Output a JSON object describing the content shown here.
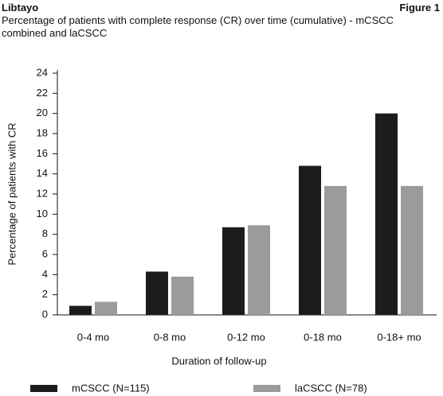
{
  "chart_data": {
    "type": "bar",
    "title": "Libtayo",
    "figure_label": "Figure 1",
    "subtitle": "Percentage of patients with complete response (CR) over time (cumulative) - mCSCC combined and laCSCC",
    "x_label": "Duration of follow-up",
    "y_label": "Percentage of patients with CR",
    "categories": [
      "0-4 mo",
      "0-8 mo",
      "0-12 mo",
      "0-18 mo",
      "0-18+ mo"
    ],
    "series": [
      {
        "name": "mCSCC (N=115)",
        "color": "#1c1c1c",
        "values": [
          0.9,
          4.3,
          8.7,
          14.8,
          20.0
        ]
      },
      {
        "name": "laCSCC (N=78)",
        "color": "#9b9b9b",
        "values": [
          1.3,
          3.8,
          8.9,
          12.8,
          12.8
        ]
      }
    ],
    "ylim": [
      0,
      24
    ],
    "yticks": [
      0,
      2,
      4,
      6,
      8,
      10,
      12,
      14,
      16,
      18,
      20,
      22,
      24
    ],
    "grid": false,
    "legend": "bottom"
  }
}
